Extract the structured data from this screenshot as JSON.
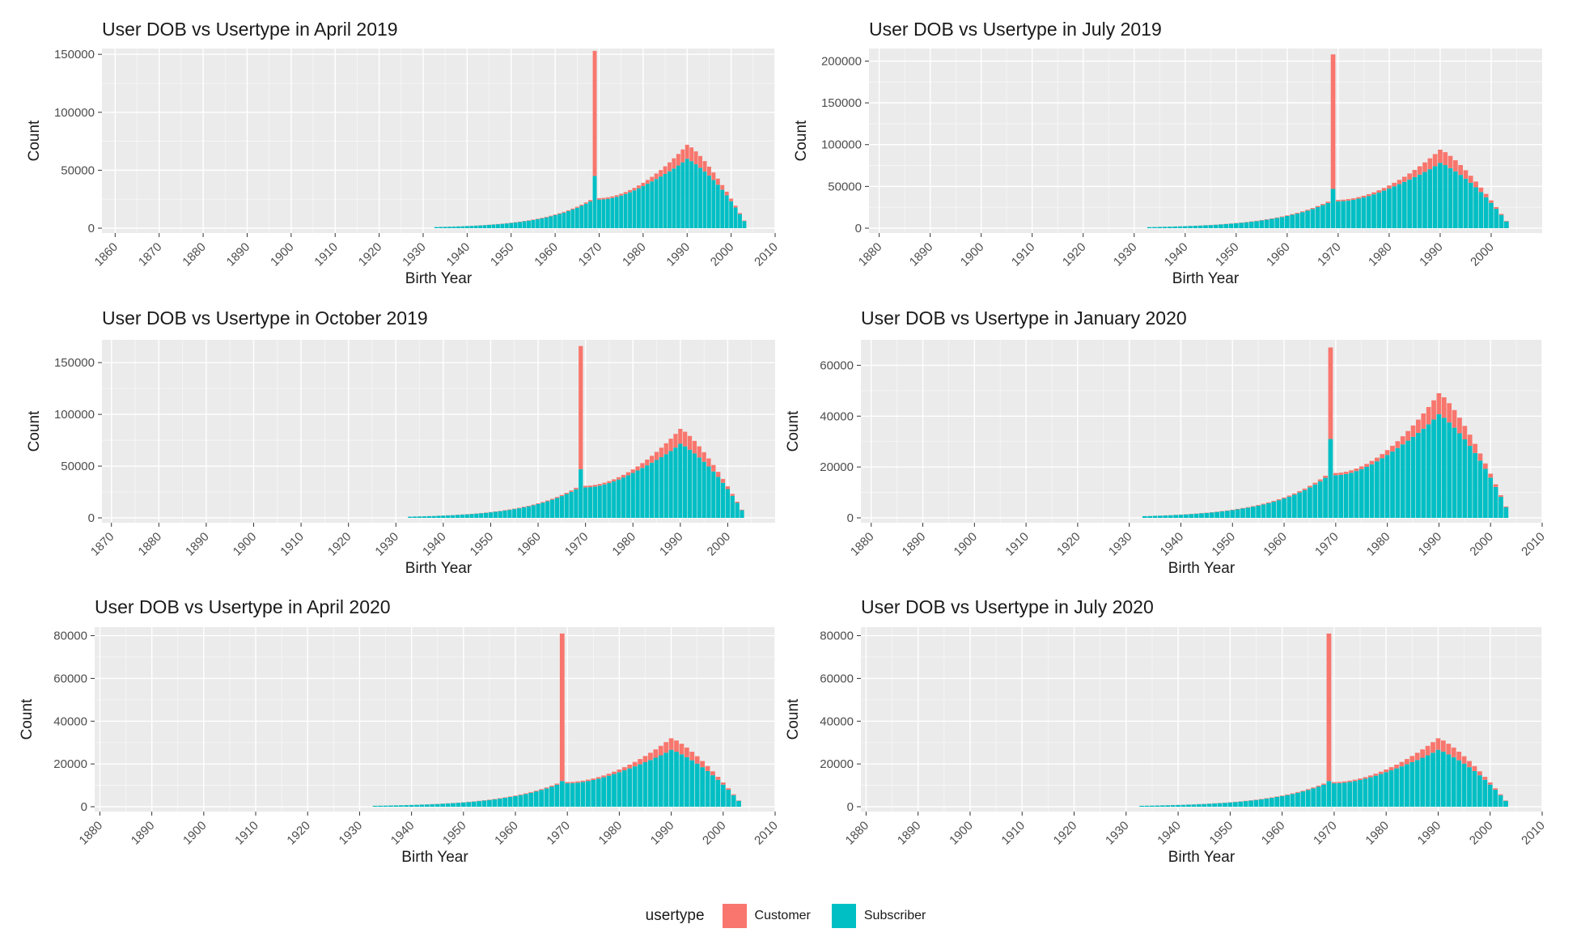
{
  "colors": {
    "customer": "#F8766D",
    "subscriber": "#00BFC4",
    "panel_bg": "#EBEBEB",
    "grid": "#FFFFFF"
  },
  "legend": {
    "title": "usertype",
    "items": [
      {
        "label": "Customer",
        "color": "#F8766D"
      },
      {
        "label": "Subscriber",
        "color": "#00BFC4"
      }
    ]
  },
  "chart_data": [
    {
      "type": "bar",
      "stacked": true,
      "title": "User DOB vs Usertype in April 2019",
      "xlabel": "Birth Year",
      "ylabel": "Count",
      "xlim": [
        1857,
        2010
      ],
      "ylim": [
        0,
        155000
      ],
      "x_ticks": [
        1860,
        1870,
        1880,
        1890,
        1900,
        1910,
        1920,
        1930,
        1940,
        1950,
        1960,
        1970,
        1980,
        1990,
        2000,
        2010
      ],
      "y_ticks": [
        0,
        50000,
        100000,
        150000
      ],
      "spike": {
        "year": 1969,
        "total": 153000,
        "subscriber": 45000
      },
      "peak": {
        "year": 1990,
        "total": 72000,
        "subscriber": 65000
      },
      "series": [
        {
          "name": "Customer",
          "color": "#F8766D"
        },
        {
          "name": "Subscriber",
          "color": "#00BFC4"
        }
      ]
    },
    {
      "type": "bar",
      "stacked": true,
      "title": "User DOB vs Usertype in July 2019",
      "xlabel": "Birth Year",
      "ylabel": "Count",
      "xlim": [
        1878,
        2010
      ],
      "ylim": [
        0,
        215000
      ],
      "x_ticks": [
        1880,
        1890,
        1900,
        1910,
        1920,
        1930,
        1940,
        1950,
        1960,
        1970,
        1980,
        1990,
        2000
      ],
      "y_ticks": [
        0,
        50000,
        100000,
        150000,
        200000
      ],
      "spike": {
        "year": 1969,
        "total": 208000,
        "subscriber": 47000
      },
      "peak": {
        "year": 1990,
        "total": 94000,
        "subscriber": 82000
      },
      "series": [
        {
          "name": "Customer",
          "color": "#F8766D"
        },
        {
          "name": "Subscriber",
          "color": "#00BFC4"
        }
      ]
    },
    {
      "type": "bar",
      "stacked": true,
      "title": "User DOB vs Usertype in October 2019",
      "xlabel": "Birth Year",
      "ylabel": "Count",
      "xlim": [
        1868,
        2010
      ],
      "ylim": [
        0,
        172000
      ],
      "x_ticks": [
        1870,
        1880,
        1890,
        1900,
        1910,
        1920,
        1930,
        1940,
        1950,
        1960,
        1970,
        1980,
        1990,
        2000
      ],
      "y_ticks": [
        0,
        50000,
        100000,
        150000
      ],
      "spike": {
        "year": 1969,
        "total": 166000,
        "subscriber": 47000
      },
      "peak": {
        "year": 1991,
        "total": 86000,
        "subscriber": 76000
      },
      "series": [
        {
          "name": "Customer",
          "color": "#F8766D"
        },
        {
          "name": "Subscriber",
          "color": "#00BFC4"
        }
      ]
    },
    {
      "type": "bar",
      "stacked": true,
      "title": "User DOB vs Usertype in January 2020",
      "xlabel": "Birth Year",
      "ylabel": "Count",
      "xlim": [
        1878,
        2010
      ],
      "ylim": [
        0,
        70000
      ],
      "x_ticks": [
        1880,
        1890,
        1900,
        1910,
        1920,
        1930,
        1940,
        1950,
        1960,
        1970,
        1980,
        1990,
        2000,
        2010
      ],
      "y_ticks": [
        0,
        20000,
        40000,
        60000
      ],
      "spike": {
        "year": 1969,
        "total": 67000,
        "subscriber": 31000
      },
      "peak": {
        "year": 1990,
        "total": 49000,
        "subscriber": 45000
      },
      "series": [
        {
          "name": "Customer",
          "color": "#F8766D"
        },
        {
          "name": "Subscriber",
          "color": "#00BFC4"
        }
      ]
    },
    {
      "type": "bar",
      "stacked": true,
      "title": "User DOB vs Usertype in April 2020",
      "xlabel": "Birth Year",
      "ylabel": "Count",
      "xlim": [
        1879,
        2010
      ],
      "ylim": [
        0,
        84000
      ],
      "x_ticks": [
        1880,
        1890,
        1900,
        1910,
        1920,
        1930,
        1940,
        1950,
        1960,
        1970,
        1980,
        1990,
        2000,
        2010
      ],
      "y_ticks": [
        0,
        20000,
        40000,
        60000,
        80000
      ],
      "spike": {
        "year": 1969,
        "total": 81000,
        "subscriber": 12000
      },
      "peak": {
        "year": 1990,
        "total": 32000,
        "subscriber": 24000
      },
      "series": [
        {
          "name": "Customer",
          "color": "#F8766D"
        },
        {
          "name": "Subscriber",
          "color": "#00BFC4"
        }
      ]
    },
    {
      "type": "bar",
      "stacked": true,
      "title": "User DOB vs Usertype in July 2020",
      "xlabel": "Birth Year",
      "ylabel": "Count",
      "xlim": [
        1879,
        2010
      ],
      "ylim": [
        0,
        84000
      ],
      "x_ticks": [
        1880,
        1890,
        1900,
        1910,
        1920,
        1930,
        1940,
        1950,
        1960,
        1970,
        1980,
        1990,
        2000,
        2010
      ],
      "y_ticks": [
        0,
        20000,
        40000,
        60000,
        80000
      ],
      "spike": {
        "year": 1969,
        "total": 81000,
        "subscriber": 12000
      },
      "peak": {
        "year": 1990,
        "total": 32000,
        "subscriber": 24000
      },
      "series": [
        {
          "name": "Customer",
          "color": "#F8766D"
        },
        {
          "name": "Subscriber",
          "color": "#00BFC4"
        }
      ]
    }
  ]
}
